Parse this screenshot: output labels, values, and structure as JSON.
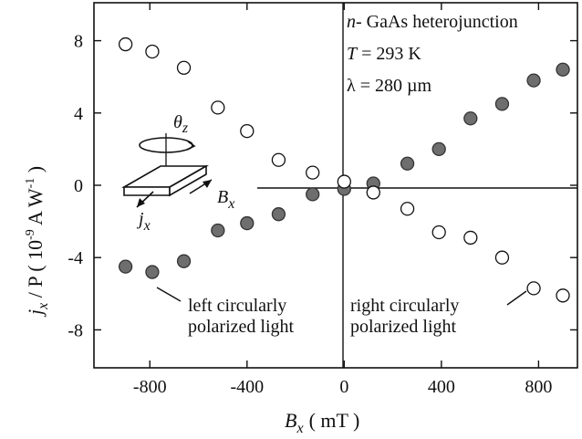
{
  "chart_data": {
    "type": "scatter",
    "title": "",
    "xlabel_main": "B",
    "xlabel_sub": "x",
    "xlabel_unit": "( mT )",
    "ylabel_main": "j",
    "ylabel_sub": "x",
    "ylabel_rest": " / P  ( 10",
    "ylabel_exp": "-9",
    "ylabel_unit": " A W",
    "ylabel_unit_exp": "-1",
    "ylabel_close": " )",
    "xlim": [
      -1030,
      960
    ],
    "ylim": [
      -10.1,
      10.1
    ],
    "xticks": [
      -800,
      -400,
      0,
      400,
      800
    ],
    "yticks": [
      8,
      4,
      0,
      -4,
      -8
    ],
    "xtick_labels": [
      "-800",
      "-400",
      "0",
      "400",
      "800"
    ],
    "ytick_labels": [
      "8",
      "4",
      "0",
      "-4",
      "-8"
    ],
    "grid": false,
    "series": [
      {
        "name": "left circularly polarized light",
        "marker": "filled-circle",
        "color": "#6e6e6e",
        "x": [
          -900,
          -790,
          -660,
          -520,
          -400,
          -270,
          -130,
          0,
          120,
          260,
          390,
          520,
          650,
          780,
          900
        ],
        "y": [
          -4.5,
          -4.8,
          -4.2,
          -2.5,
          -2.1,
          -1.6,
          -0.5,
          -0.2,
          0.1,
          1.2,
          2.0,
          3.7,
          4.5,
          5.8,
          6.4
        ]
      },
      {
        "name": "right circularly polarized light",
        "marker": "open-circle",
        "color": "#111111",
        "x": [
          -900,
          -790,
          -660,
          -520,
          -400,
          -270,
          -130,
          0,
          120,
          260,
          390,
          520,
          650,
          780,
          900
        ],
        "y": [
          7.8,
          7.4,
          6.5,
          4.3,
          3.0,
          1.4,
          0.7,
          0.2,
          -0.4,
          -1.3,
          -2.6,
          -2.9,
          -4.0,
          -5.7,
          -6.1
        ]
      }
    ],
    "info_box": {
      "line1_italic": "n",
      "line1_rest": "- GaAs heterojunction",
      "line2_italic": "T",
      "line2_rest": " = 293 K",
      "line3": "λ = 280 µm"
    },
    "annotations": {
      "left_line1": "left circularly",
      "left_line2": "polarized light",
      "right_line1": "right circularly",
      "right_line2": "polarized light",
      "inset_theta": "θ",
      "inset_theta_sub": "z",
      "inset_b": "B",
      "inset_b_sub": "x",
      "inset_j": "j",
      "inset_j_sub": "x"
    }
  }
}
